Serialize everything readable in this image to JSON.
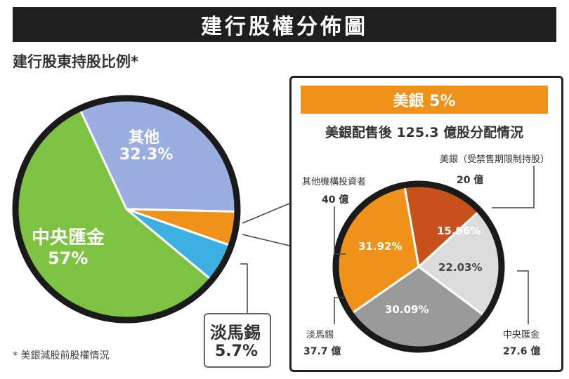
{
  "header": {
    "title": "建行股權分佈圖"
  },
  "left": {
    "subtitle": "建行股東持股比例*",
    "footnote": "* 美銀減股前股權情況",
    "labels": {
      "other_name": "其他",
      "other_pct": "32.3%",
      "central_name": "中央匯金",
      "central_pct": "57%",
      "temasek_name": "淡馬錫",
      "temasek_pct": "5.7%"
    }
  },
  "inset": {
    "header": "美銀 5%",
    "title": "美銀配售後 125.3 億股分配情況",
    "labels": {
      "boa_name": "美銀（受禁售期限制持股）",
      "boa_amount": "20 億",
      "other_inv_name": "其他機構投資者",
      "other_inv_amount": "40 億",
      "central_name": "中央匯金",
      "central_amount": "27.6 億",
      "temasek_name": "淡馬錫",
      "temasek_amount": "37.7 億"
    }
  },
  "chart_data": [
    {
      "type": "pie",
      "title": "建行股東持股比例*",
      "slices": [
        {
          "name": "其他",
          "value": 32.3,
          "color": "#9aaee0"
        },
        {
          "name": "美銀",
          "value": 5,
          "color": "#f0921a"
        },
        {
          "name": "淡馬錫",
          "value": 5.7,
          "color": "#3cb0e0"
        },
        {
          "name": "中央匯金",
          "value": 57,
          "color": "#7ec242"
        }
      ]
    },
    {
      "type": "pie",
      "title": "美銀配售後 125.3 億股分配情況",
      "slices": [
        {
          "name": "美銀（受禁售期限制持股）",
          "value": 15.96,
          "label": "15.96%",
          "color": "#c8501a"
        },
        {
          "name": "中央匯金",
          "value": 22.03,
          "label": "22.03%",
          "color": "#dcdcdc"
        },
        {
          "name": "淡馬錫",
          "value": 30.09,
          "label": "30.09%",
          "color": "#9a9a9a"
        },
        {
          "name": "其他機構投資者",
          "value": 31.92,
          "label": "31.92%",
          "color": "#f0921a"
        }
      ]
    }
  ]
}
